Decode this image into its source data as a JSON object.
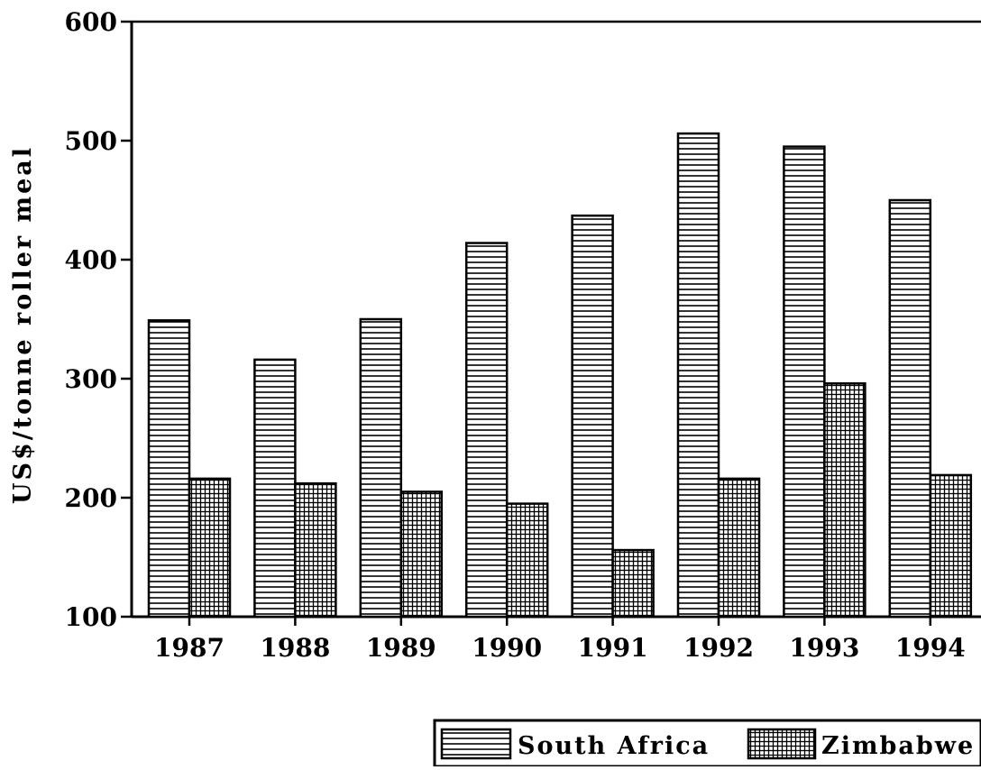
{
  "chart_data": {
    "type": "bar",
    "title": "",
    "xlabel": "",
    "ylabel": "US$/tonne roller meal",
    "ylim": [
      100,
      600
    ],
    "yticks": [
      100,
      200,
      300,
      400,
      500,
      600
    ],
    "categories": [
      "1987",
      "1988",
      "1989",
      "1990",
      "1991",
      "1992",
      "1993",
      "1994"
    ],
    "series": [
      {
        "name": "South Africa",
        "pattern": "horizontal-lines",
        "values": [
          349,
          316,
          350,
          414,
          437,
          506,
          495,
          450
        ]
      },
      {
        "name": "Zimbabwe",
        "pattern": "grid",
        "values": [
          216,
          212,
          205,
          195,
          156,
          216,
          296,
          219
        ]
      }
    ],
    "grid": false,
    "legend_position": "bottom-right",
    "colors": {
      "ink": "#000000",
      "fill": "#ffffff"
    }
  }
}
